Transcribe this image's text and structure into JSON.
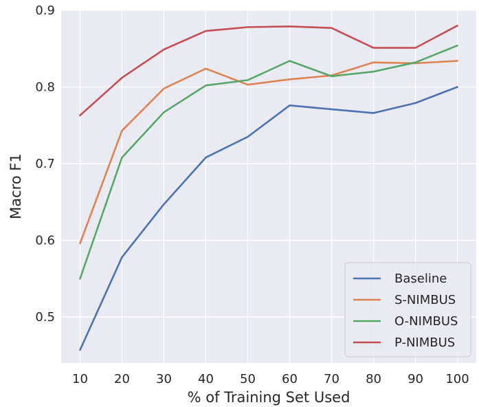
{
  "chart_data": {
    "type": "line",
    "title": "",
    "xlabel": "% of Training Set Used",
    "ylabel": "Macro F1",
    "x": [
      10,
      20,
      30,
      40,
      50,
      60,
      70,
      80,
      90,
      100
    ],
    "x_ticks": [
      "10",
      "20",
      "30",
      "40",
      "50",
      "60",
      "70",
      "80",
      "90",
      "100"
    ],
    "y_ticks": [
      "0.5",
      "0.6",
      "0.7",
      "0.8",
      "0.9"
    ],
    "xlim": [
      5.5,
      104.5
    ],
    "ylim": [
      0.44,
      0.9
    ],
    "grid": true,
    "legend_position": "bottom-right",
    "series": [
      {
        "name": "Baseline",
        "color": "#4c72b0",
        "values": [
          0.457,
          0.578,
          0.647,
          0.708,
          0.735,
          0.776,
          0.771,
          0.766,
          0.779,
          0.8
        ]
      },
      {
        "name": "S-NIMBUS",
        "color": "#dd8452",
        "values": [
          0.596,
          0.743,
          0.798,
          0.824,
          0.803,
          0.81,
          0.815,
          0.832,
          0.831,
          0.834
        ]
      },
      {
        "name": "O-NIMBUS",
        "color": "#55a868",
        "values": [
          0.55,
          0.708,
          0.767,
          0.802,
          0.809,
          0.834,
          0.814,
          0.82,
          0.832,
          0.854
        ]
      },
      {
        "name": "P-NIMBUS",
        "color": "#c44e52",
        "values": [
          0.763,
          0.812,
          0.849,
          0.873,
          0.878,
          0.879,
          0.877,
          0.851,
          0.851,
          0.88
        ]
      }
    ]
  }
}
